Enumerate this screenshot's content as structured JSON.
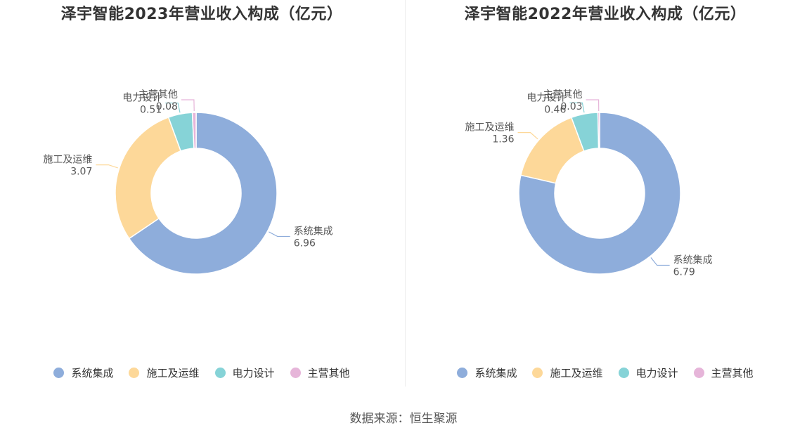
{
  "source": "数据来源：恒生聚源",
  "colors": [
    "#8eaddb",
    "#fdd899",
    "#86d3d7",
    "#e6b5d9"
  ],
  "chart_data": [
    {
      "type": "pie",
      "title": "泽宇智能2023年营业收入构成（亿元）",
      "categories": [
        "系统集成",
        "施工及运维",
        "电力设计",
        "主营其他"
      ],
      "values": [
        6.96,
        3.07,
        0.51,
        0.08
      ],
      "value_labels": [
        "6.96",
        "3.07",
        "0.51",
        "0.08"
      ],
      "legend_position": "bottom"
    },
    {
      "type": "pie",
      "title": "泽宇智能2022年营业收入构成（亿元）",
      "categories": [
        "系统集成",
        "施工及运维",
        "电力设计",
        "主营其他"
      ],
      "values": [
        6.79,
        1.36,
        0.46,
        0.03
      ],
      "value_labels": [
        "6.79",
        "1.36",
        "0.46",
        "0.03"
      ],
      "legend_position": "bottom"
    }
  ]
}
